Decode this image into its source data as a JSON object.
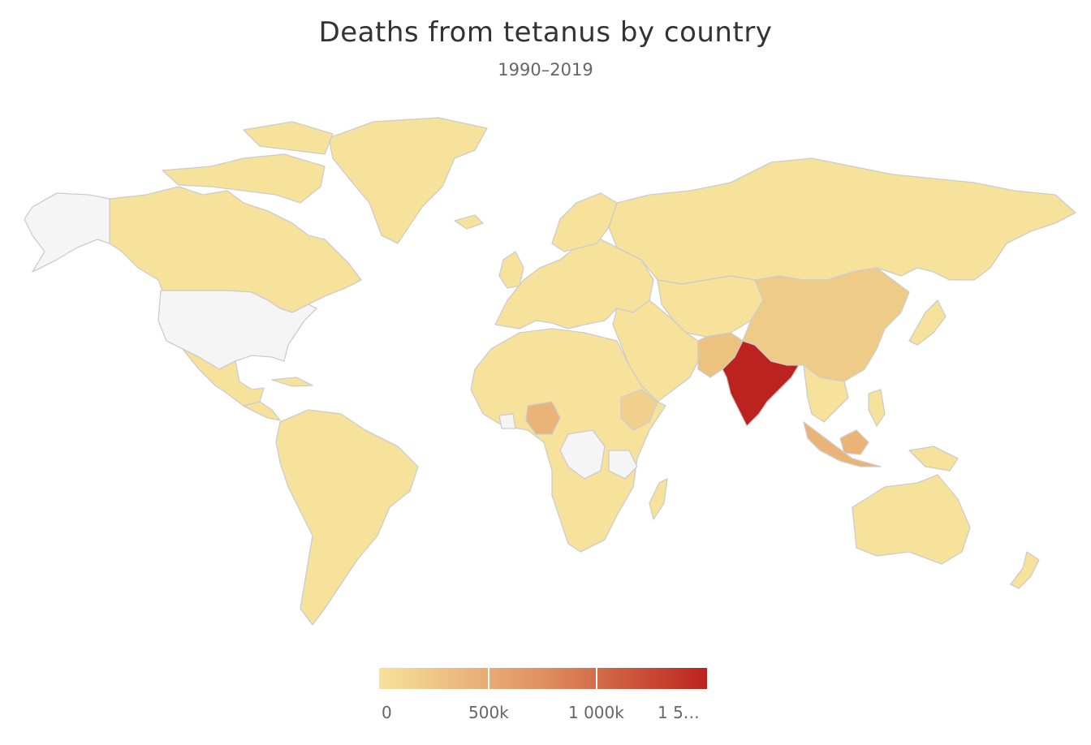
{
  "header": {
    "title": "Deaths from tetanus by country",
    "subtitle": "1990–2019"
  },
  "colors": {
    "low": "#f7e29b",
    "mid": "#e09060",
    "high": "#bc231e",
    "no_data": "#f5f5f5",
    "border": "#cccccc"
  },
  "legend": {
    "ticks": [
      "0",
      "500k",
      "1 000k",
      "1 5…"
    ],
    "min": 0,
    "max": 1500000
  },
  "map_data": {
    "type": "choropleth",
    "metric": "Deaths from tetanus",
    "highlighted": [
      {
        "region": "India",
        "level": "highest"
      },
      {
        "region": "Pakistan",
        "level": "elevated"
      },
      {
        "region": "Bangladesh",
        "level": "elevated"
      },
      {
        "region": "China",
        "level": "elevated"
      },
      {
        "region": "Nigeria",
        "level": "elevated"
      },
      {
        "region": "Ethiopia",
        "level": "elevated"
      },
      {
        "region": "Indonesia",
        "level": "elevated"
      }
    ],
    "no_data_regions": [
      "United States",
      "Alaska",
      "Democratic Republic of the Congo",
      "Tanzania",
      "Ghana",
      "Cuba"
    ]
  }
}
